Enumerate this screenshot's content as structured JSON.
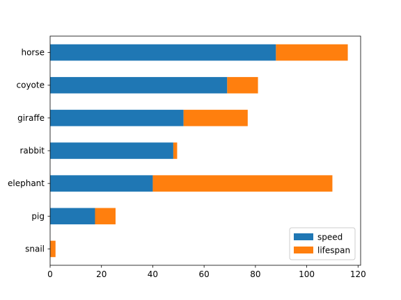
{
  "chart_data": {
    "type": "bar",
    "orientation": "horizontal",
    "stacked": true,
    "categories": [
      "snail",
      "pig",
      "elephant",
      "rabbit",
      "giraffe",
      "coyote",
      "horse"
    ],
    "series": [
      {
        "name": "speed",
        "values": [
          0.1,
          17.5,
          40,
          48,
          52,
          69,
          88
        ],
        "color": "#1f77b4"
      },
      {
        "name": "lifespan",
        "values": [
          2,
          8,
          70,
          1.5,
          25,
          12,
          28
        ],
        "color": "#ff7f0e"
      }
    ],
    "title": "",
    "xlabel": "",
    "ylabel": "",
    "xlim": [
      0,
      121
    ],
    "xticks": [
      0,
      20,
      40,
      60,
      80,
      100,
      120
    ],
    "grid": false,
    "legend": "lower-right"
  }
}
